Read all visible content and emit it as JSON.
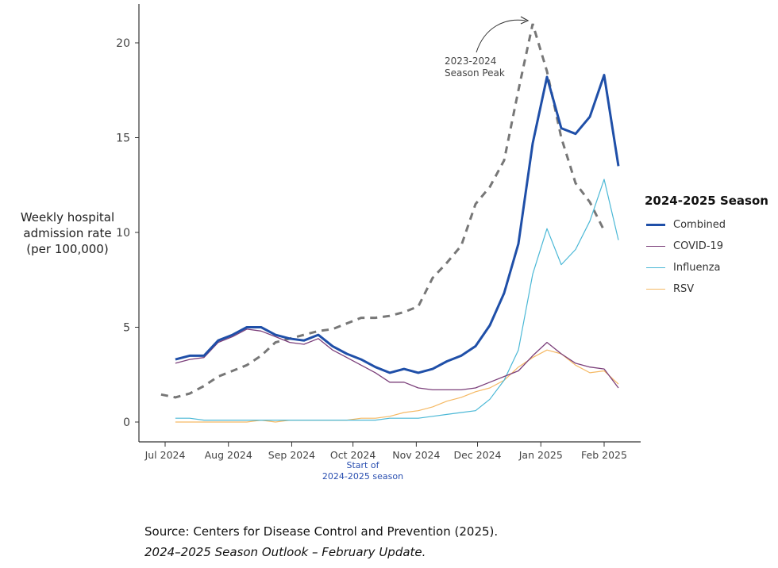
{
  "chart_data": {
    "type": "line",
    "title": "",
    "ylabel": "Weekly hospital admission rate (per 100,000)",
    "xlabel": "",
    "ylim": [
      0,
      22
    ],
    "yticks": [
      0,
      5,
      10,
      15,
      20
    ],
    "xticks": [
      {
        "date": "2024-07-01",
        "label": "Jul 2024"
      },
      {
        "date": "2024-08-01",
        "label": "Aug 2024"
      },
      {
        "date": "2024-09-01",
        "label": "Sep 2024"
      },
      {
        "date": "2024-10-01",
        "label": "Oct 2024"
      },
      {
        "date": "2024-11-01",
        "label": "Nov 2024"
      },
      {
        "date": "2024-12-01",
        "label": "Dec 2024"
      },
      {
        "date": "2025-01-01",
        "label": "Jan 2025"
      },
      {
        "date": "2025-02-01",
        "label": "Feb 2025"
      }
    ],
    "grid": false,
    "legend": {
      "title": "2024-2025 Season",
      "placement": "right"
    },
    "x_start_2024_2025": "2024-07-06",
    "x_start_2023_2024": "2024-06-29",
    "interval": "weekly",
    "series": [
      {
        "name": "Combined",
        "color": "#1f4fa8",
        "width": 3,
        "values": [
          3.3,
          3.5,
          3.5,
          4.3,
          4.6,
          5.0,
          5.0,
          4.6,
          4.4,
          4.3,
          4.6,
          4.0,
          3.6,
          3.3,
          2.9,
          2.6,
          2.8,
          2.6,
          2.8,
          3.2,
          3.5,
          4.0,
          5.1,
          6.8,
          9.4,
          14.7,
          18.2,
          15.5,
          15.2,
          16.1,
          18.3,
          13.5
        ]
      },
      {
        "name": "COVID-19",
        "color": "#7b3f7a",
        "width": 1.3,
        "values": [
          3.1,
          3.3,
          3.4,
          4.2,
          4.5,
          4.9,
          4.8,
          4.5,
          4.2,
          4.1,
          4.4,
          3.8,
          3.4,
          3.0,
          2.6,
          2.1,
          2.1,
          1.8,
          1.7,
          1.7,
          1.7,
          1.8,
          2.1,
          2.4,
          2.7,
          3.5,
          4.2,
          3.6,
          3.1,
          2.9,
          2.8,
          1.8
        ]
      },
      {
        "name": "Influenza",
        "color": "#4bb8d6",
        "width": 1.2,
        "values": [
          0.2,
          0.2,
          0.1,
          0.1,
          0.1,
          0.1,
          0.1,
          0.1,
          0.1,
          0.1,
          0.1,
          0.1,
          0.1,
          0.1,
          0.1,
          0.2,
          0.2,
          0.2,
          0.3,
          0.4,
          0.5,
          0.6,
          1.2,
          2.2,
          3.8,
          7.8,
          10.2,
          8.3,
          9.1,
          10.6,
          12.8,
          9.6
        ]
      },
      {
        "name": "RSV",
        "color": "#f5b964",
        "width": 1.2,
        "values": [
          0,
          0,
          0,
          0,
          0,
          0,
          0.1,
          0,
          0.1,
          0.1,
          0.1,
          0.1,
          0.1,
          0.2,
          0.2,
          0.3,
          0.5,
          0.6,
          0.8,
          1.1,
          1.3,
          1.6,
          1.8,
          2.2,
          2.9,
          3.4,
          3.8,
          3.6,
          3.0,
          2.6,
          2.7,
          2.0
        ]
      }
    ],
    "comparison_series": {
      "color": "#777777",
      "dashed": true,
      "values": [
        1.45,
        1.3,
        1.5,
        1.9,
        2.4,
        2.7,
        3.0,
        3.5,
        4.2,
        4.4,
        4.6,
        4.8,
        4.9,
        5.2,
        5.5,
        5.5,
        5.6,
        5.8,
        6.1,
        7.6,
        8.4,
        9.3,
        11.5,
        12.4,
        13.8,
        17.5,
        21.0,
        18.5,
        15.0,
        12.6,
        11.6,
        10.1
      ]
    },
    "annotations": {
      "peak_line1": "2023-2024",
      "peak_line2": "Season Peak",
      "season_start_line1": "Start of",
      "season_start_line2": "2024-2025 season"
    }
  },
  "ylabel_lines": [
    "Weekly hospital",
    "admission rate",
    "(per 100,000)"
  ],
  "source": {
    "line1": "Source: Centers for Disease Control and Prevention (2025).",
    "line2": "2024–2025 Season Outlook – February Update."
  }
}
